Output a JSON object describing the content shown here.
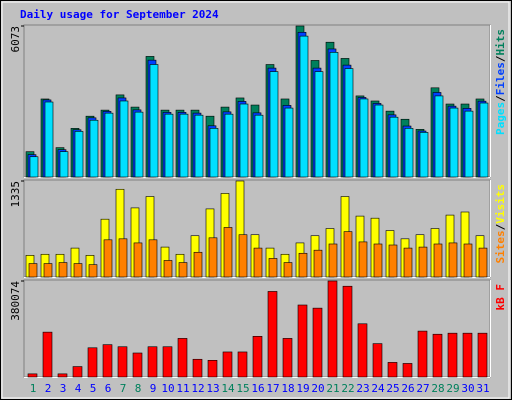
{
  "chart_data": [
    {
      "type": "bar",
      "title": "Daily usage for September 2024",
      "ylim": [
        0,
        6073
      ],
      "yticks": [
        6073
      ],
      "series": [
        {
          "name": "Hits",
          "color": "#00805c",
          "values": [
            1019,
            3138,
            1182,
            1956,
            2446,
            2690,
            3302,
            2812,
            4850,
            2690,
            2690,
            2690,
            2446,
            2812,
            3179,
            2894,
            4524,
            3138,
            6073,
            4687,
            5421,
            4769,
            3261,
            3057,
            2649,
            2323,
            1916,
            3587,
            2935,
            2935,
            3138
          ]
        },
        {
          "name": "Files",
          "color": "#0040ff",
          "values": [
            900,
            3100,
            1100,
            1900,
            2380,
            2640,
            3180,
            2700,
            4700,
            2600,
            2600,
            2570,
            2060,
            2620,
            3040,
            2580,
            4380,
            2880,
            5820,
            4380,
            5150,
            4500,
            3200,
            2960,
            2500,
            2050,
            1850,
            3400,
            2850,
            2760,
            3050
          ]
        },
        {
          "name": "Pages",
          "color": "#00e0ff",
          "values": [
            815,
            3016,
            1019,
            1834,
            2283,
            2568,
            3057,
            2609,
            4524,
            2527,
            2527,
            2486,
            1956,
            2527,
            2935,
            2486,
            4239,
            2772,
            5666,
            4239,
            5013,
            4361,
            3139,
            2894,
            2405,
            1956,
            1793,
            3261,
            2772,
            2649,
            2975
          ]
        }
      ]
    },
    {
      "type": "bar",
      "ylim": [
        0,
        1335
      ],
      "yticks": [
        1335
      ],
      "series": [
        {
          "name": "Visits",
          "color": "#ffff00",
          "values": [
            301,
            316,
            316,
            402,
            301,
            804,
            1220,
            961,
            1119,
            416,
            316,
            574,
            947,
            1162,
            1335,
            588,
            402,
            316,
            474,
            574,
            674,
            1119,
            847,
            818,
            646,
            531,
            588,
            674,
            861,
            904,
            574
          ]
        },
        {
          "name": "Sites",
          "color": "#ff8000",
          "values": [
            187,
            187,
            201,
            187,
            172,
            517,
            531,
            474,
            517,
            230,
            201,
            344,
            545,
            689,
            588,
            402,
            258,
            201,
            330,
            373,
            459,
            631,
            488,
            459,
            445,
            402,
            416,
            459,
            474,
            459,
            402
          ]
        }
      ]
    },
    {
      "type": "bar",
      "ylim": [
        0,
        380074
      ],
      "yticks": [
        380074
      ],
      "categories": [
        "1",
        "2",
        "3",
        "4",
        "5",
        "6",
        "7",
        "8",
        "9",
        "10",
        "11",
        "12",
        "13",
        "14",
        "15",
        "16",
        "17",
        "18",
        "19",
        "20",
        "21",
        "22",
        "23",
        "24",
        "25",
        "26",
        "27",
        "28",
        "29",
        "30",
        "31"
      ],
      "category_colors": [
        "#00805c",
        "#0000ff",
        "#0000ff",
        "#0000ff",
        "#0000ff",
        "#0000ff",
        "#00805c",
        "#00805c",
        "#0000ff",
        "#0000ff",
        "#0000ff",
        "#0000ff",
        "#0000ff",
        "#00805c",
        "#00805c",
        "#0000ff",
        "#0000ff",
        "#0000ff",
        "#0000ff",
        "#0000ff",
        "#00805c",
        "#00805c",
        "#0000ff",
        "#0000ff",
        "#0000ff",
        "#0000ff",
        "#0000ff",
        "#00805c",
        "#00805c",
        "#0000ff",
        "#0000ff"
      ],
      "series": [
        {
          "name": "kB F",
          "color": "#ff0000",
          "values": [
            12394,
            177633,
            12394,
            41310,
            115668,
            128061,
            119799,
            95013,
            119799,
            119799,
            152847,
            70227,
            66096,
            99144,
            99144,
            161109,
            338742,
            152847,
            285039,
            272646,
            380074,
            359397,
            210681,
            132192,
            57834,
            53703,
            181764,
            169371,
            173502,
            173502,
            173502
          ]
        }
      ]
    }
  ]
}
